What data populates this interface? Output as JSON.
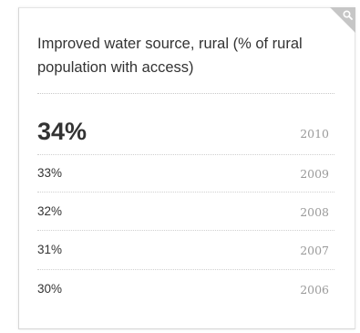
{
  "widget": {
    "title": "Improved water source, rural (% of rural population with access)",
    "latest": {
      "value": "34%",
      "year": "2010"
    },
    "history": [
      {
        "value": "33%",
        "year": "2009"
      },
      {
        "value": "32%",
        "year": "2008"
      },
      {
        "value": "31%",
        "year": "2007"
      },
      {
        "value": "30%",
        "year": "2006"
      }
    ],
    "corner_icon": "magnifier-icon",
    "colors": {
      "text": "#333333",
      "year": "#9a9a9a",
      "corner": "#c6c6c6"
    }
  }
}
